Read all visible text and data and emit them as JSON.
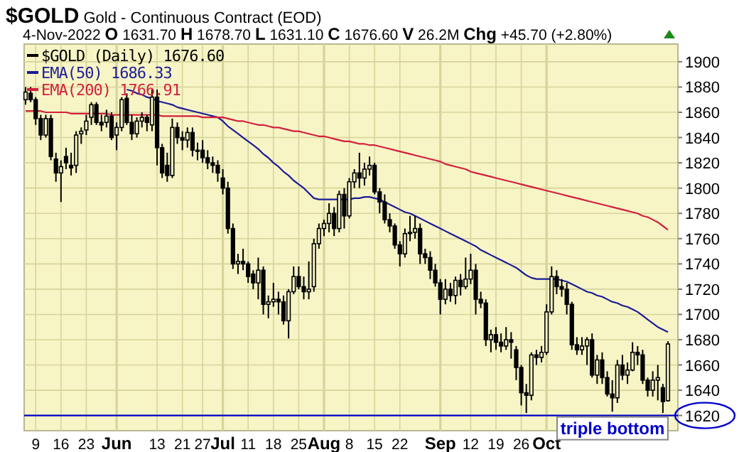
{
  "chart_data": {
    "type": "candlestick",
    "title": "$GOLD Gold - Continuous Contract (EOD)",
    "subtitle": "4-Nov-2022   O 1631.70  H 1678.70  L 1631.10  C 1676.60  V 26.2M  Chg +45.70 (+2.80%)",
    "categories": [
      null,
      null,
      "9",
      null,
      null,
      null,
      null,
      "16",
      null,
      null,
      null,
      null,
      "23",
      null,
      null,
      null,
      null,
      null,
      "Jun",
      null,
      null,
      null,
      null,
      null,
      null,
      null,
      "13",
      null,
      null,
      null,
      null,
      "21",
      null,
      null,
      null,
      "27",
      null,
      null,
      null,
      "Jul",
      null,
      null,
      null,
      null,
      "11",
      null,
      null,
      null,
      null,
      "18",
      null,
      null,
      null,
      null,
      "25",
      null,
      null,
      null,
      null,
      "Aug",
      null,
      null,
      null,
      null,
      "8",
      null,
      null,
      null,
      null,
      "15",
      null,
      null,
      null,
      null,
      "22",
      null,
      null,
      null,
      null,
      null,
      null,
      null,
      "Sep",
      null,
      null,
      null,
      null,
      null,
      "12",
      null,
      null,
      null,
      null,
      "19",
      null,
      null,
      null,
      null,
      "26",
      null,
      null,
      null,
      null,
      "Oct",
      null,
      null,
      null,
      null,
      null,
      null,
      null,
      null,
      null,
      null,
      null,
      null,
      null,
      null,
      null,
      null,
      null,
      null,
      null,
      null,
      null,
      null,
      null,
      null
    ],
    "series": [
      {
        "name": "$GOLD (Daily) 1676.60",
        "color": "#000000",
        "ohlc": [
          [
            1870,
            1880,
            1866,
            1876
          ],
          [
            1875,
            1880,
            1868,
            1870
          ],
          [
            1870,
            1872,
            1850,
            1855
          ],
          [
            1855,
            1858,
            1838,
            1842
          ],
          [
            1842,
            1858,
            1840,
            1855
          ],
          [
            1855,
            1858,
            1822,
            1825
          ],
          [
            1823,
            1828,
            1805,
            1812
          ],
          [
            1812,
            1822,
            1789,
            1817
          ],
          [
            1825,
            1832,
            1815,
            1820
          ],
          [
            1818,
            1828,
            1810,
            1816
          ],
          [
            1818,
            1845,
            1812,
            1842
          ],
          [
            1843,
            1848,
            1835,
            1845
          ],
          [
            1846,
            1858,
            1842,
            1853
          ],
          [
            1856,
            1868,
            1850,
            1866
          ],
          [
            1866,
            1868,
            1850,
            1852
          ],
          [
            1852,
            1858,
            1845,
            1850
          ],
          [
            1852,
            1862,
            1848,
            1857
          ],
          [
            1857,
            1860,
            1838,
            1840
          ],
          [
            1842,
            1852,
            1830,
            1848
          ],
          [
            1848,
            1872,
            1845,
            1870
          ],
          [
            1871,
            1875,
            1850,
            1852
          ],
          [
            1852,
            1858,
            1838,
            1843
          ],
          [
            1843,
            1856,
            1840,
            1853
          ],
          [
            1853,
            1860,
            1848,
            1856
          ],
          [
            1856,
            1858,
            1845,
            1852
          ],
          [
            1850,
            1878,
            1845,
            1872
          ],
          [
            1872,
            1878,
            1818,
            1832
          ],
          [
            1832,
            1835,
            1808,
            1812
          ],
          [
            1818,
            1828,
            1805,
            1810
          ],
          [
            1810,
            1855,
            1808,
            1848
          ],
          [
            1848,
            1852,
            1835,
            1840
          ],
          [
            1840,
            1845,
            1830,
            1838
          ],
          [
            1838,
            1848,
            1832,
            1844
          ],
          [
            1844,
            1848,
            1825,
            1830
          ],
          [
            1830,
            1836,
            1822,
            1830
          ],
          [
            1830,
            1838,
            1820,
            1824
          ],
          [
            1824,
            1830,
            1815,
            1820
          ],
          [
            1820,
            1825,
            1812,
            1818
          ],
          [
            1818,
            1822,
            1805,
            1812
          ],
          [
            1808,
            1815,
            1795,
            1800
          ],
          [
            1800,
            1805,
            1764,
            1768
          ],
          [
            1768,
            1772,
            1736,
            1740
          ],
          [
            1740,
            1748,
            1732,
            1742
          ],
          [
            1742,
            1752,
            1735,
            1740
          ],
          [
            1740,
            1742,
            1725,
            1730
          ],
          [
            1732,
            1735,
            1720,
            1725
          ],
          [
            1725,
            1745,
            1712,
            1735
          ],
          [
            1735,
            1738,
            1700,
            1708
          ],
          [
            1708,
            1715,
            1697,
            1710
          ],
          [
            1710,
            1725,
            1706,
            1712
          ],
          [
            1712,
            1718,
            1700,
            1710
          ],
          [
            1710,
            1715,
            1692,
            1695
          ],
          [
            1695,
            1720,
            1681,
            1718
          ],
          [
            1718,
            1738,
            1716,
            1730
          ],
          [
            1730,
            1738,
            1720,
            1722
          ],
          [
            1722,
            1730,
            1712,
            1718
          ],
          [
            1718,
            1742,
            1712,
            1720
          ],
          [
            1722,
            1760,
            1718,
            1756
          ],
          [
            1756,
            1772,
            1752,
            1768
          ],
          [
            1768,
            1775,
            1762,
            1772
          ],
          [
            1772,
            1788,
            1765,
            1780
          ],
          [
            1780,
            1785,
            1762,
            1768
          ],
          [
            1768,
            1798,
            1765,
            1795
          ],
          [
            1795,
            1800,
            1768,
            1778
          ],
          [
            1778,
            1808,
            1776,
            1805
          ],
          [
            1805,
            1815,
            1800,
            1812
          ],
          [
            1812,
            1828,
            1800,
            1808
          ],
          [
            1808,
            1820,
            1802,
            1815
          ],
          [
            1815,
            1825,
            1810,
            1818
          ],
          [
            1818,
            1820,
            1795,
            1797
          ],
          [
            1797,
            1800,
            1780,
            1789
          ],
          [
            1789,
            1795,
            1772,
            1775
          ],
          [
            1775,
            1780,
            1765,
            1770
          ],
          [
            1770,
            1772,
            1752,
            1755
          ],
          [
            1755,
            1758,
            1738,
            1748
          ],
          [
            1748,
            1768,
            1745,
            1764
          ],
          [
            1764,
            1778,
            1758,
            1765
          ],
          [
            1765,
            1778,
            1760,
            1768
          ],
          [
            1768,
            1772,
            1740,
            1748
          ],
          [
            1748,
            1752,
            1740,
            1745
          ],
          [
            1745,
            1750,
            1728,
            1735
          ],
          [
            1735,
            1740,
            1722,
            1725
          ],
          [
            1725,
            1728,
            1700,
            1712
          ],
          [
            1712,
            1728,
            1708,
            1720
          ],
          [
            1720,
            1725,
            1710,
            1715
          ],
          [
            1715,
            1730,
            1708,
            1727
          ],
          [
            1727,
            1732,
            1715,
            1722
          ],
          [
            1722,
            1745,
            1720,
            1728
          ],
          [
            1728,
            1748,
            1724,
            1735
          ],
          [
            1735,
            1740,
            1700,
            1712
          ],
          [
            1712,
            1718,
            1705,
            1709
          ],
          [
            1709,
            1712,
            1675,
            1680
          ],
          [
            1680,
            1688,
            1670,
            1684
          ],
          [
            1684,
            1690,
            1672,
            1678
          ],
          [
            1678,
            1685,
            1670,
            1675
          ],
          [
            1675,
            1690,
            1672,
            1680
          ],
          [
            1680,
            1686,
            1665,
            1678
          ],
          [
            1672,
            1675,
            1648,
            1658
          ],
          [
            1658,
            1660,
            1628,
            1638
          ],
          [
            1638,
            1645,
            1622,
            1636
          ],
          [
            1636,
            1670,
            1632,
            1668
          ],
          [
            1668,
            1672,
            1660,
            1666
          ],
          [
            1666,
            1675,
            1662,
            1670
          ],
          [
            1670,
            1708,
            1668,
            1702
          ],
          [
            1702,
            1738,
            1700,
            1730
          ],
          [
            1730,
            1735,
            1716,
            1722
          ],
          [
            1722,
            1728,
            1714,
            1720
          ],
          [
            1720,
            1725,
            1700,
            1708
          ],
          [
            1708,
            1710,
            1672,
            1676
          ],
          [
            1676,
            1682,
            1668,
            1672
          ],
          [
            1672,
            1682,
            1668,
            1675
          ],
          [
            1675,
            1682,
            1660,
            1680
          ],
          [
            1680,
            1685,
            1650,
            1652
          ],
          [
            1652,
            1668,
            1645,
            1664
          ],
          [
            1664,
            1670,
            1645,
            1650
          ],
          [
            1650,
            1655,
            1635,
            1637
          ],
          [
            1637,
            1648,
            1623,
            1634
          ],
          [
            1634,
            1664,
            1630,
            1660
          ],
          [
            1660,
            1668,
            1648,
            1652
          ],
          [
            1652,
            1662,
            1645,
            1656
          ],
          [
            1656,
            1678,
            1655,
            1670
          ],
          [
            1670,
            1675,
            1660,
            1668
          ],
          [
            1668,
            1672,
            1645,
            1648
          ],
          [
            1648,
            1650,
            1635,
            1640
          ],
          [
            1640,
            1655,
            1635,
            1648
          ],
          [
            1648,
            1660,
            1632,
            1650
          ],
          [
            1642,
            1645,
            1622,
            1631
          ],
          [
            1631.7,
            1678.7,
            1631.1,
            1676.6
          ]
        ]
      },
      {
        "name": "EMA(50) 1686.33",
        "type": "line",
        "color": "#1c1c96",
        "values": [
          null,
          null,
          null,
          null,
          null,
          null,
          null,
          null,
          null,
          null,
          null,
          null,
          null,
          null,
          null,
          null,
          null,
          null,
          null,
          null,
          1878,
          1877,
          1875,
          1874,
          1872,
          1871,
          1869,
          1868,
          1867,
          1866,
          1864,
          1863,
          1862,
          1861,
          1860,
          1859,
          1858,
          1857,
          1856,
          1853,
          1849,
          1846,
          1843,
          1840,
          1837,
          1834,
          1831,
          1827,
          1824,
          1820,
          1817,
          1813,
          1810,
          1806,
          1803,
          1800,
          1796,
          1792,
          1791,
          1791,
          1791,
          1791,
          1791,
          1791,
          1791,
          1792,
          1792,
          1793,
          1793,
          1792,
          1791,
          1789,
          1787,
          1785,
          1783,
          1781,
          1780,
          1778,
          1776,
          1774,
          1772,
          1770,
          1768,
          1766,
          1764,
          1762,
          1760,
          1758,
          1756,
          1754,
          1751,
          1749,
          1747,
          1745,
          1743,
          1741,
          1739,
          1737,
          1734,
          1731,
          1729,
          1728,
          1728,
          1728,
          1728,
          1728,
          1727,
          1726,
          1724,
          1722,
          1720,
          1718,
          1717,
          1715,
          1714,
          1712,
          1710,
          1709,
          1707,
          1706,
          1704,
          1702,
          1699,
          1696,
          1693,
          1690,
          1688,
          1686
        ]
      },
      {
        "name": "EMA(200) 1766.91",
        "type": "line",
        "color": "#d4203c",
        "values": [
          1861,
          1861,
          1861,
          1861,
          1860,
          1860,
          1860,
          1860,
          1860,
          1859,
          1859,
          1859,
          1859,
          1859,
          1859,
          1859,
          1859,
          1858,
          1858,
          1858,
          1858,
          1858,
          1858,
          1858,
          1858,
          1858,
          1858,
          1857,
          1857,
          1857,
          1857,
          1857,
          1857,
          1857,
          1857,
          1856,
          1856,
          1856,
          1856,
          1856,
          1855,
          1854,
          1853,
          1853,
          1852,
          1851,
          1850,
          1850,
          1849,
          1848,
          1848,
          1847,
          1846,
          1845,
          1845,
          1844,
          1843,
          1842,
          1841,
          1841,
          1840,
          1839,
          1838,
          1837,
          1837,
          1836,
          1835,
          1835,
          1834,
          1834,
          1833,
          1832,
          1831,
          1830,
          1829,
          1828,
          1827,
          1826,
          1825,
          1824,
          1823,
          1822,
          1821,
          1819,
          1818,
          1817,
          1816,
          1815,
          1813,
          1812,
          1811,
          1810,
          1809,
          1808,
          1807,
          1806,
          1805,
          1804,
          1803,
          1802,
          1801,
          1800,
          1799,
          1798,
          1797,
          1796,
          1795,
          1794,
          1793,
          1792,
          1791,
          1790,
          1789,
          1788,
          1787,
          1786,
          1785,
          1784,
          1783,
          1782,
          1781,
          1780,
          1778,
          1777,
          1775,
          1773,
          1770,
          1767
        ]
      }
    ],
    "ylim": [
      1608,
      1914
    ],
    "yticks": [
      1620,
      1640,
      1660,
      1680,
      1700,
      1720,
      1740,
      1760,
      1780,
      1800,
      1820,
      1840,
      1860,
      1880,
      1900
    ],
    "grid": true,
    "legend": "top left",
    "ref_lines": [
      {
        "axis": "y",
        "value": 1620,
        "label": "triple bottom",
        "color": "#0000cc"
      }
    ]
  }
}
